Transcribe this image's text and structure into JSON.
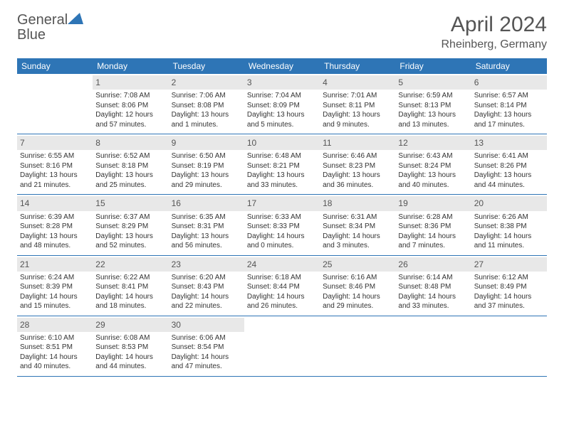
{
  "brand": {
    "name_a": "General",
    "name_b": "Blue"
  },
  "header": {
    "month": "April 2024",
    "location": "Rheinberg, Germany"
  },
  "days": [
    "Sunday",
    "Monday",
    "Tuesday",
    "Wednesday",
    "Thursday",
    "Friday",
    "Saturday"
  ],
  "colors": {
    "header_bg": "#2e75b6",
    "header_text": "#ffffff",
    "daynum_bg": "#e8e8e8",
    "border": "#2e75b6",
    "text": "#333333",
    "muted": "#555555"
  },
  "weeks": [
    [
      null,
      {
        "n": "1",
        "l1": "Sunrise: 7:08 AM",
        "l2": "Sunset: 8:06 PM",
        "l3": "Daylight: 12 hours",
        "l4": "and 57 minutes."
      },
      {
        "n": "2",
        "l1": "Sunrise: 7:06 AM",
        "l2": "Sunset: 8:08 PM",
        "l3": "Daylight: 13 hours",
        "l4": "and 1 minutes."
      },
      {
        "n": "3",
        "l1": "Sunrise: 7:04 AM",
        "l2": "Sunset: 8:09 PM",
        "l3": "Daylight: 13 hours",
        "l4": "and 5 minutes."
      },
      {
        "n": "4",
        "l1": "Sunrise: 7:01 AM",
        "l2": "Sunset: 8:11 PM",
        "l3": "Daylight: 13 hours",
        "l4": "and 9 minutes."
      },
      {
        "n": "5",
        "l1": "Sunrise: 6:59 AM",
        "l2": "Sunset: 8:13 PM",
        "l3": "Daylight: 13 hours",
        "l4": "and 13 minutes."
      },
      {
        "n": "6",
        "l1": "Sunrise: 6:57 AM",
        "l2": "Sunset: 8:14 PM",
        "l3": "Daylight: 13 hours",
        "l4": "and 17 minutes."
      }
    ],
    [
      {
        "n": "7",
        "l1": "Sunrise: 6:55 AM",
        "l2": "Sunset: 8:16 PM",
        "l3": "Daylight: 13 hours",
        "l4": "and 21 minutes."
      },
      {
        "n": "8",
        "l1": "Sunrise: 6:52 AM",
        "l2": "Sunset: 8:18 PM",
        "l3": "Daylight: 13 hours",
        "l4": "and 25 minutes."
      },
      {
        "n": "9",
        "l1": "Sunrise: 6:50 AM",
        "l2": "Sunset: 8:19 PM",
        "l3": "Daylight: 13 hours",
        "l4": "and 29 minutes."
      },
      {
        "n": "10",
        "l1": "Sunrise: 6:48 AM",
        "l2": "Sunset: 8:21 PM",
        "l3": "Daylight: 13 hours",
        "l4": "and 33 minutes."
      },
      {
        "n": "11",
        "l1": "Sunrise: 6:46 AM",
        "l2": "Sunset: 8:23 PM",
        "l3": "Daylight: 13 hours",
        "l4": "and 36 minutes."
      },
      {
        "n": "12",
        "l1": "Sunrise: 6:43 AM",
        "l2": "Sunset: 8:24 PM",
        "l3": "Daylight: 13 hours",
        "l4": "and 40 minutes."
      },
      {
        "n": "13",
        "l1": "Sunrise: 6:41 AM",
        "l2": "Sunset: 8:26 PM",
        "l3": "Daylight: 13 hours",
        "l4": "and 44 minutes."
      }
    ],
    [
      {
        "n": "14",
        "l1": "Sunrise: 6:39 AM",
        "l2": "Sunset: 8:28 PM",
        "l3": "Daylight: 13 hours",
        "l4": "and 48 minutes."
      },
      {
        "n": "15",
        "l1": "Sunrise: 6:37 AM",
        "l2": "Sunset: 8:29 PM",
        "l3": "Daylight: 13 hours",
        "l4": "and 52 minutes."
      },
      {
        "n": "16",
        "l1": "Sunrise: 6:35 AM",
        "l2": "Sunset: 8:31 PM",
        "l3": "Daylight: 13 hours",
        "l4": "and 56 minutes."
      },
      {
        "n": "17",
        "l1": "Sunrise: 6:33 AM",
        "l2": "Sunset: 8:33 PM",
        "l3": "Daylight: 14 hours",
        "l4": "and 0 minutes."
      },
      {
        "n": "18",
        "l1": "Sunrise: 6:31 AM",
        "l2": "Sunset: 8:34 PM",
        "l3": "Daylight: 14 hours",
        "l4": "and 3 minutes."
      },
      {
        "n": "19",
        "l1": "Sunrise: 6:28 AM",
        "l2": "Sunset: 8:36 PM",
        "l3": "Daylight: 14 hours",
        "l4": "and 7 minutes."
      },
      {
        "n": "20",
        "l1": "Sunrise: 6:26 AM",
        "l2": "Sunset: 8:38 PM",
        "l3": "Daylight: 14 hours",
        "l4": "and 11 minutes."
      }
    ],
    [
      {
        "n": "21",
        "l1": "Sunrise: 6:24 AM",
        "l2": "Sunset: 8:39 PM",
        "l3": "Daylight: 14 hours",
        "l4": "and 15 minutes."
      },
      {
        "n": "22",
        "l1": "Sunrise: 6:22 AM",
        "l2": "Sunset: 8:41 PM",
        "l3": "Daylight: 14 hours",
        "l4": "and 18 minutes."
      },
      {
        "n": "23",
        "l1": "Sunrise: 6:20 AM",
        "l2": "Sunset: 8:43 PM",
        "l3": "Daylight: 14 hours",
        "l4": "and 22 minutes."
      },
      {
        "n": "24",
        "l1": "Sunrise: 6:18 AM",
        "l2": "Sunset: 8:44 PM",
        "l3": "Daylight: 14 hours",
        "l4": "and 26 minutes."
      },
      {
        "n": "25",
        "l1": "Sunrise: 6:16 AM",
        "l2": "Sunset: 8:46 PM",
        "l3": "Daylight: 14 hours",
        "l4": "and 29 minutes."
      },
      {
        "n": "26",
        "l1": "Sunrise: 6:14 AM",
        "l2": "Sunset: 8:48 PM",
        "l3": "Daylight: 14 hours",
        "l4": "and 33 minutes."
      },
      {
        "n": "27",
        "l1": "Sunrise: 6:12 AM",
        "l2": "Sunset: 8:49 PM",
        "l3": "Daylight: 14 hours",
        "l4": "and 37 minutes."
      }
    ],
    [
      {
        "n": "28",
        "l1": "Sunrise: 6:10 AM",
        "l2": "Sunset: 8:51 PM",
        "l3": "Daylight: 14 hours",
        "l4": "and 40 minutes."
      },
      {
        "n": "29",
        "l1": "Sunrise: 6:08 AM",
        "l2": "Sunset: 8:53 PM",
        "l3": "Daylight: 14 hours",
        "l4": "and 44 minutes."
      },
      {
        "n": "30",
        "l1": "Sunrise: 6:06 AM",
        "l2": "Sunset: 8:54 PM",
        "l3": "Daylight: 14 hours",
        "l4": "and 47 minutes."
      },
      null,
      null,
      null,
      null
    ]
  ]
}
